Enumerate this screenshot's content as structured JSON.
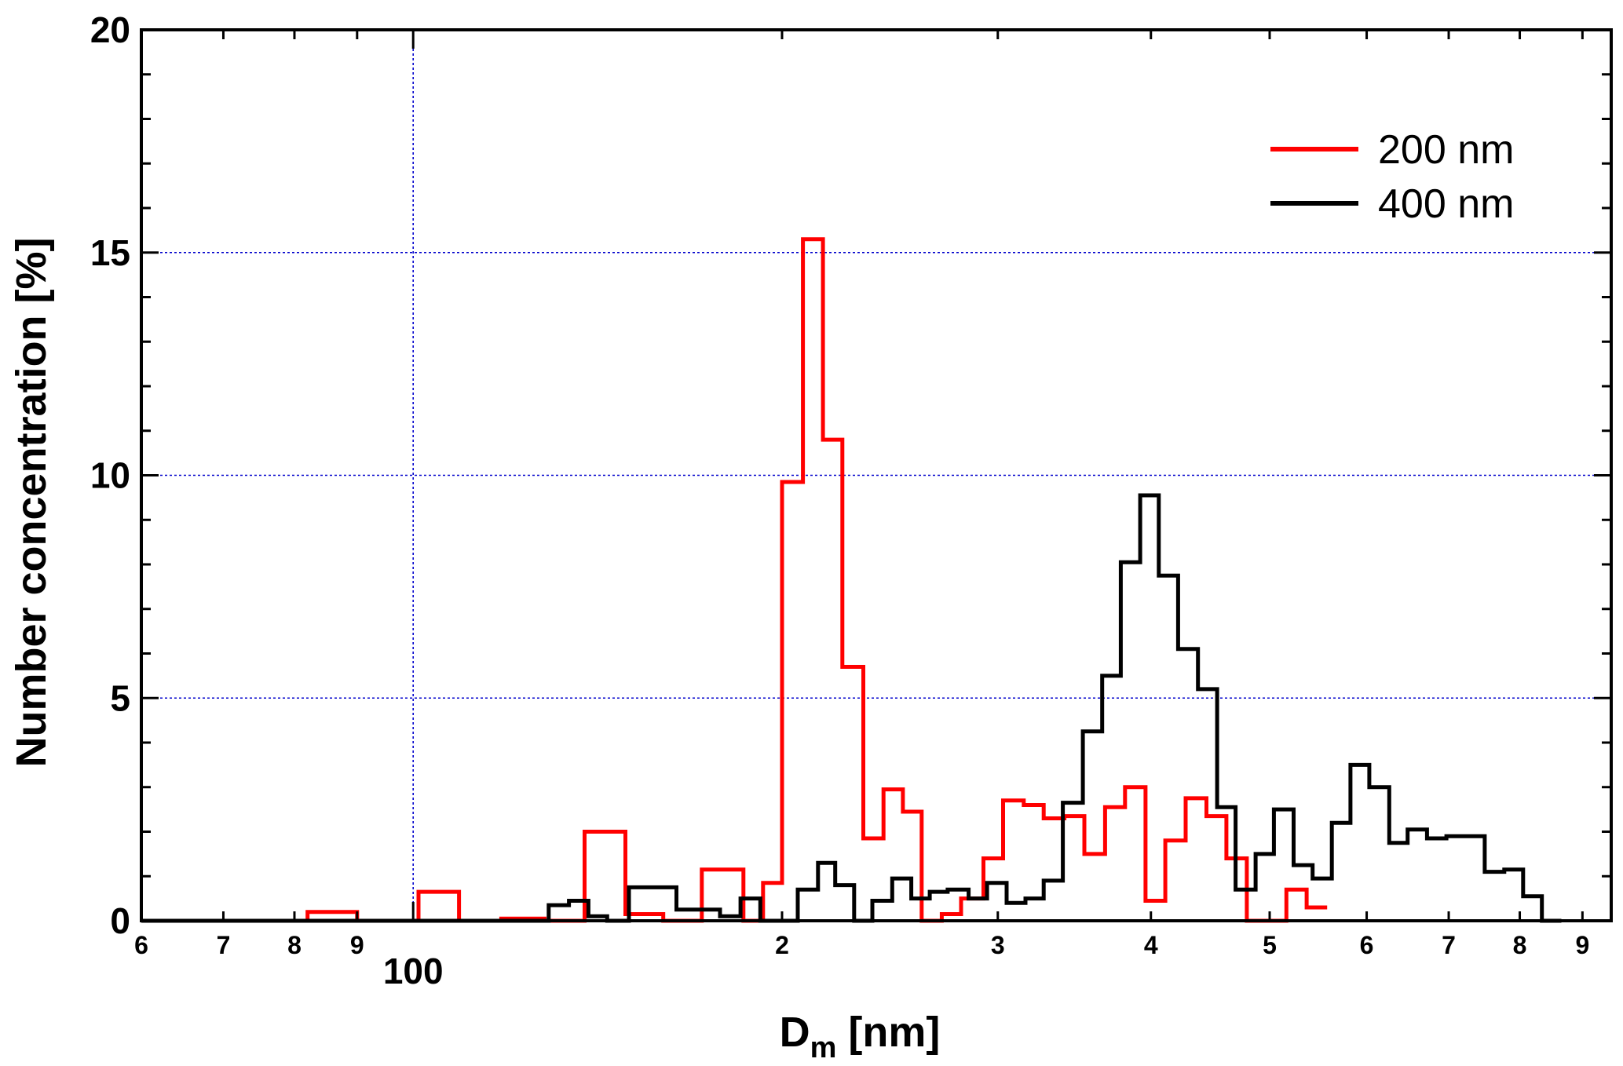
{
  "chart_data": {
    "type": "line",
    "step": true,
    "xscale": "log",
    "xlim": [
      60,
      950
    ],
    "ylim": [
      0,
      20
    ],
    "xlabel_main": "D",
    "xlabel_sub": "m",
    "xlabel_unit": " [nm]",
    "ylabel": "Number concentration [%]",
    "grid": true,
    "legend_position": "top-right",
    "x_major_ticks": [
      100
    ],
    "x_major_tick_labels": [
      "100"
    ],
    "x_minor_ticks": [
      60,
      70,
      80,
      90,
      200,
      300,
      400,
      500,
      600,
      700,
      800,
      900
    ],
    "x_minor_tick_labels": [
      "6",
      "7",
      "8",
      "9",
      "2",
      "3",
      "4",
      "5",
      "6",
      "7",
      "8",
      "9"
    ],
    "y_ticks": [
      0,
      5,
      10,
      15,
      20
    ],
    "y_tick_labels": [
      "0",
      "5",
      "10",
      "15",
      "20"
    ],
    "series": [
      {
        "name": "200 nm",
        "color": "#ff0000",
        "edges": [
          60,
          82,
          90,
          101,
          109,
          118,
          128,
          138,
          149,
          160,
          172,
          186,
          193,
          200,
          208,
          216,
          224,
          233,
          242,
          251,
          260,
          270,
          280,
          292,
          303,
          315,
          327,
          340,
          353,
          367,
          381,
          396,
          411,
          427,
          444,
          461,
          479,
          497,
          516,
          536,
          557
        ],
        "values": [
          0,
          0.2,
          0,
          0.65,
          0,
          0.05,
          0,
          2.0,
          0.15,
          0,
          1.15,
          0,
          0.85,
          9.85,
          15.3,
          10.8,
          5.7,
          1.85,
          2.95,
          2.45,
          0,
          0.15,
          0.5,
          1.4,
          2.7,
          2.6,
          2.3,
          2.35,
          1.5,
          2.55,
          3.0,
          0.45,
          1.8,
          2.75,
          2.35,
          1.4,
          0,
          0,
          0.7,
          0.3
        ]
      },
      {
        "name": "400 nm",
        "color": "#000000",
        "edges": [
          60,
          129,
          134,
          139,
          144,
          150,
          164,
          178,
          185,
          192,
          206,
          214,
          221,
          229,
          237,
          246,
          255,
          264,
          273,
          284,
          294,
          305,
          316,
          327,
          339,
          352,
          365,
          378,
          392,
          406,
          421,
          437,
          453,
          469,
          487,
          504,
          523,
          542,
          562,
          582,
          603,
          626,
          648,
          672,
          697,
          723,
          749,
          777,
          805,
          834,
          865
        ],
        "values": [
          0,
          0.35,
          0.45,
          0.1,
          0,
          0.75,
          0.25,
          0.1,
          0.5,
          0,
          0.7,
          1.3,
          0.8,
          0,
          0.45,
          0.95,
          0.5,
          0.65,
          0.7,
          0.5,
          0.85,
          0.4,
          0.5,
          0.9,
          2.65,
          4.25,
          5.5,
          8.05,
          9.55,
          7.75,
          6.1,
          5.2,
          2.55,
          0.7,
          1.5,
          2.5,
          1.25,
          0.95,
          2.2,
          3.5,
          3.0,
          1.75,
          2.05,
          1.85,
          1.9,
          1.9,
          1.1,
          1.15,
          0.55,
          0
        ]
      }
    ]
  }
}
